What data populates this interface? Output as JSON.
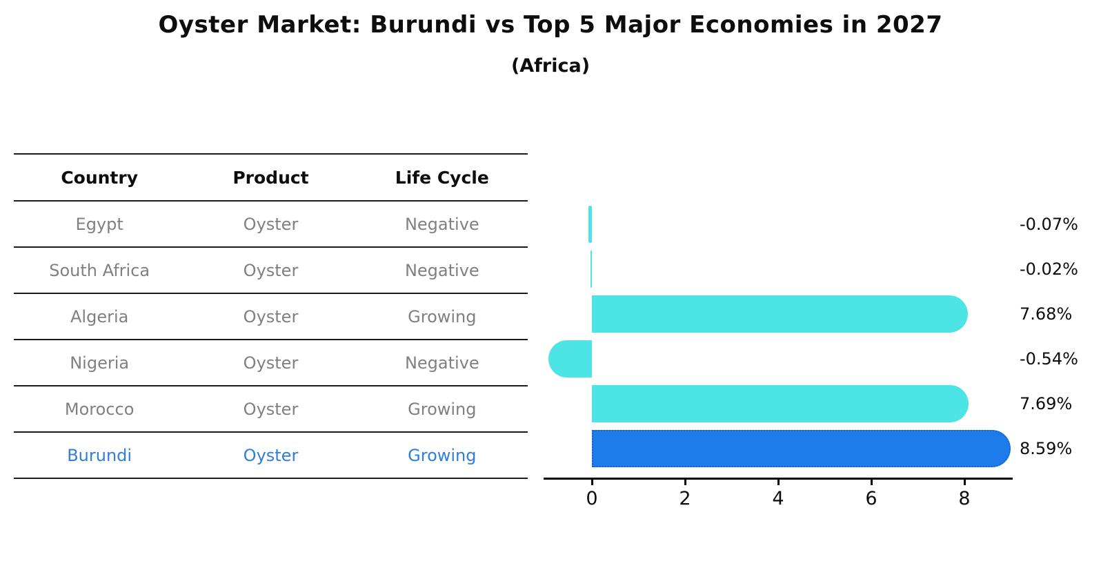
{
  "title": "Oyster Market: Burundi vs Top 5 Major Economies in 2027",
  "subtitle": "(Africa)",
  "table": {
    "headers": [
      "Country",
      "Product",
      "Life Cycle"
    ],
    "rows": [
      {
        "country": "Egypt",
        "product": "Oyster",
        "life_cycle": "Negative",
        "highlight": false
      },
      {
        "country": "South Africa",
        "product": "Oyster",
        "life_cycle": "Negative",
        "highlight": false
      },
      {
        "country": "Algeria",
        "product": "Oyster",
        "life_cycle": "Growing",
        "highlight": false
      },
      {
        "country": "Nigeria",
        "product": "Oyster",
        "life_cycle": "Negative",
        "highlight": false
      },
      {
        "country": "Morocco",
        "product": "Oyster",
        "life_cycle": "Growing",
        "highlight": false
      },
      {
        "country": "Burundi",
        "product": "Oyster",
        "life_cycle": "Growing",
        "highlight": true
      }
    ]
  },
  "chart_data": {
    "type": "bar",
    "orientation": "horizontal",
    "title": "Oyster Market: Burundi vs Top 5 Major Economies in 2027 (Africa)",
    "categories": [
      "Egypt",
      "South Africa",
      "Algeria",
      "Nigeria",
      "Morocco",
      "Burundi"
    ],
    "values": [
      -0.07,
      -0.02,
      7.68,
      -0.54,
      7.69,
      8.59
    ],
    "value_labels": [
      "-0.07%",
      "-0.02%",
      "7.68%",
      "-0.54%",
      "7.69%",
      "8.59%"
    ],
    "x_ticks": [
      "0",
      "2",
      "4",
      "6",
      "8"
    ],
    "x_tick_values": [
      0,
      2,
      4,
      6,
      8
    ],
    "xlim": [
      -1.05,
      9.05
    ],
    "grid": false,
    "legend": "none",
    "bar_color": "#4de4e6",
    "highlight_index": 5,
    "highlight_color": "#1d7ce9",
    "highlight_border_color": "#1565cf"
  },
  "colors": {
    "text_primary": "#0d0d0d",
    "text_muted": "#808080",
    "highlight_text": "#2e7fd9",
    "axis": "#000000",
    "table_line": "#1a1a1a"
  }
}
